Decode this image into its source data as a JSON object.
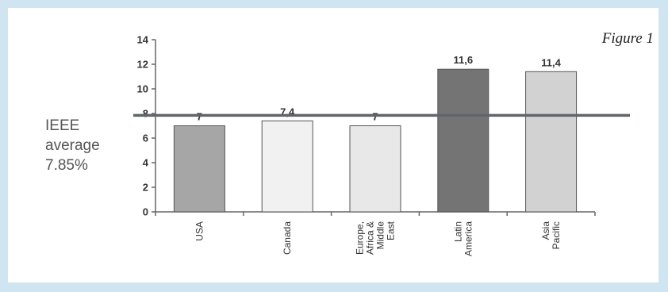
{
  "figure_label": "Figure 1",
  "reference_label": [
    "IEEE",
    "average",
    "7.85%"
  ],
  "chart_data": {
    "type": "bar",
    "categories": [
      [
        "USA"
      ],
      [
        "Canada"
      ],
      [
        "Europe,",
        "Africa &",
        "Middle",
        "East"
      ],
      [
        "Latin",
        "America"
      ],
      [
        "Asia",
        "Pacific"
      ]
    ],
    "values": [
      7,
      7.4,
      7,
      11.6,
      11.4
    ],
    "data_labels": [
      "7",
      "7,4",
      "7",
      "11,6",
      "11,4"
    ],
    "bar_colors": [
      "#a6a6a6",
      "#f1f1f1",
      "#e8e8e8",
      "#747474",
      "#d2d2d2"
    ],
    "ylim": [
      0,
      14
    ],
    "yticks": [
      0,
      2,
      4,
      6,
      8,
      10,
      12,
      14
    ],
    "reference_line": 7.85,
    "reference_line_color": "#5f6668",
    "grid": false,
    "title": "",
    "xlabel": "",
    "ylabel": ""
  }
}
